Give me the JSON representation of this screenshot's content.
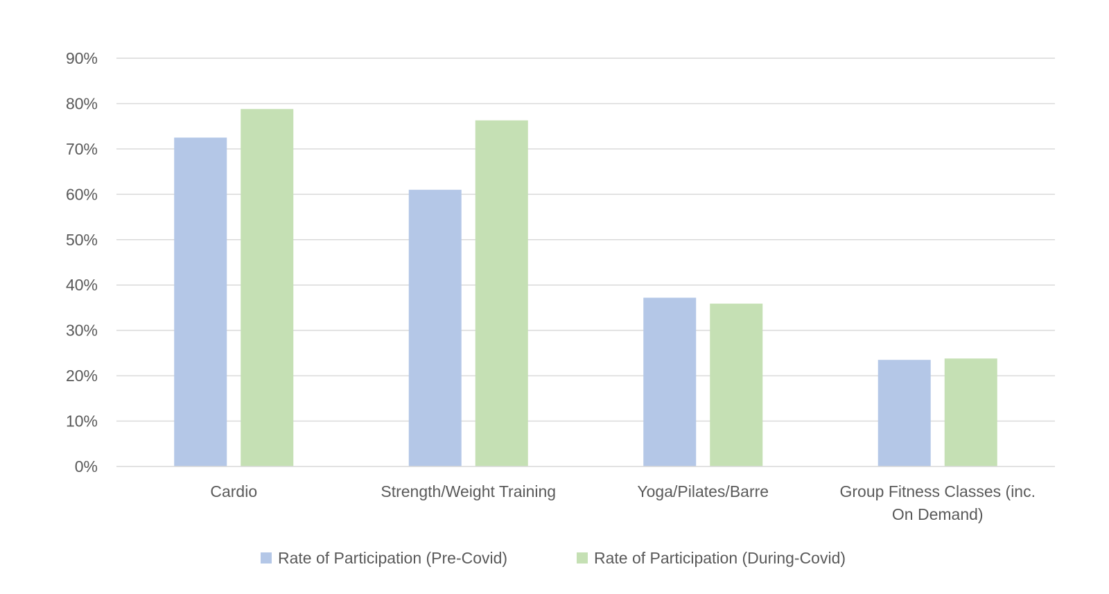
{
  "chart_data": {
    "type": "bar",
    "title": "",
    "xlabel": "",
    "ylabel": "",
    "categories": [
      [
        "Cardio"
      ],
      [
        "Strength/Weight Training"
      ],
      [
        "Yoga/Pilates/Barre"
      ],
      [
        "Group Fitness Classes (inc.",
        "On Demand)"
      ]
    ],
    "series": [
      {
        "name": "Rate of Participation (Pre-Covid)",
        "color": "#b4c7e7",
        "values": [
          72.5,
          61.0,
          37.2,
          23.5
        ]
      },
      {
        "name": "Rate of Participation (During-Covid)",
        "color": "#c5e0b4",
        "values": [
          78.8,
          76.3,
          35.9,
          23.8
        ]
      }
    ],
    "ylim": [
      0,
      90
    ],
    "yticks": [
      "0%",
      "10%",
      "20%",
      "30%",
      "40%",
      "50%",
      "60%",
      "70%",
      "80%",
      "90%"
    ],
    "grid": true,
    "legend_position": "bottom"
  }
}
